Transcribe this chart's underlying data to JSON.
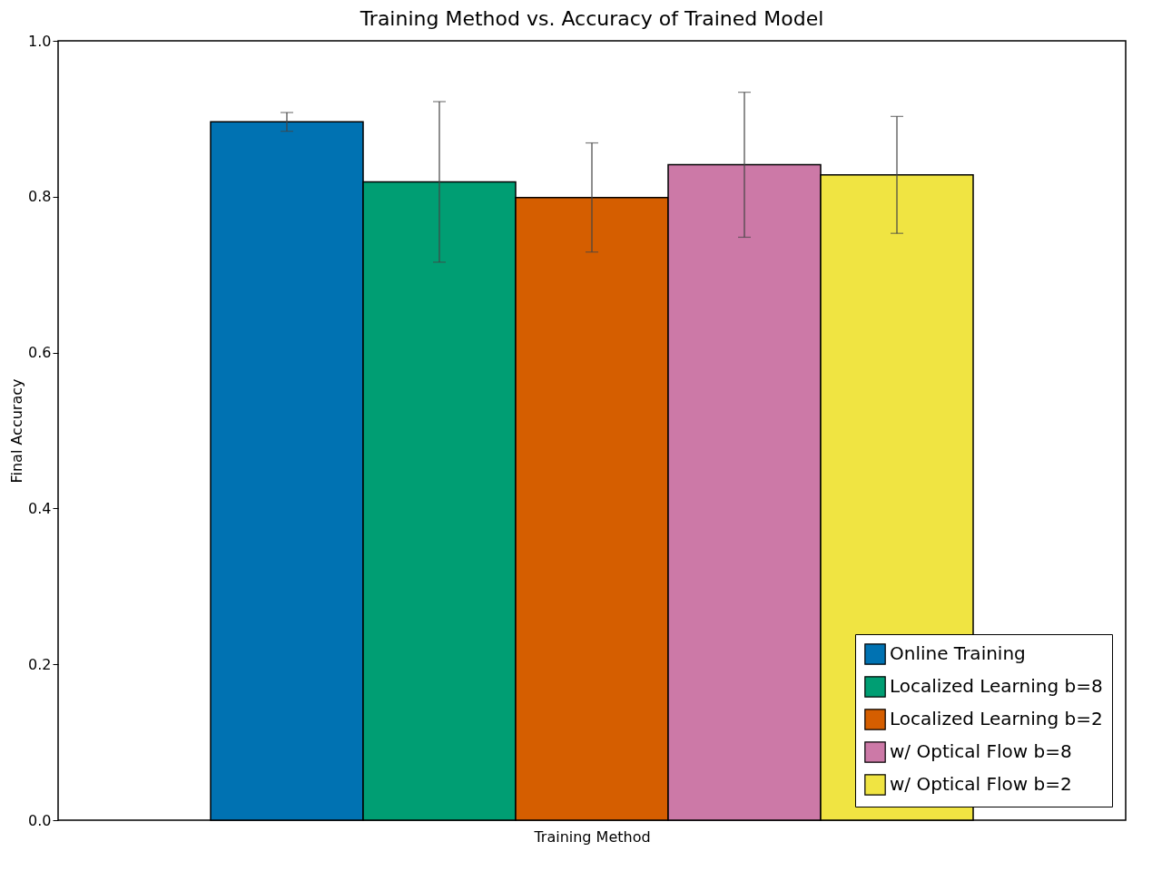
{
  "chart_data": {
    "type": "bar",
    "title": "Training Method vs. Accuracy of Trained Model",
    "xlabel": "Training Method",
    "ylabel": "Final Accuracy",
    "categories": [
      null
    ],
    "series": [
      {
        "name": "Online Training",
        "color": "#0072b2",
        "values": [
          0.896
        ],
        "errors": [
          0.012
        ]
      },
      {
        "name": "Localized Learning b=8",
        "color": "#009e73",
        "values": [
          0.819
        ],
        "errors": [
          0.103
        ]
      },
      {
        "name": "Localized Learning b=2",
        "color": "#d55e00",
        "values": [
          0.799
        ],
        "errors": [
          0.07
        ]
      },
      {
        "name": "w/ Optical Flow b=8",
        "color": "#cc79a7",
        "values": [
          0.841
        ],
        "errors": [
          0.093
        ]
      },
      {
        "name": "w/ Optical Flow b=2",
        "color": "#f0e442",
        "values": [
          0.828
        ],
        "errors": [
          0.075
        ]
      }
    ],
    "ylim": [
      0,
      1.0
    ],
    "yticks": [
      {
        "value": 0,
        "label": "0.0"
      },
      0.2,
      0.4,
      0.6,
      0.8,
      {
        "value": 1,
        "label": "1.0"
      }
    ],
    "grid": false,
    "legend": "bottom right",
    "tick_labels": "y"
  }
}
